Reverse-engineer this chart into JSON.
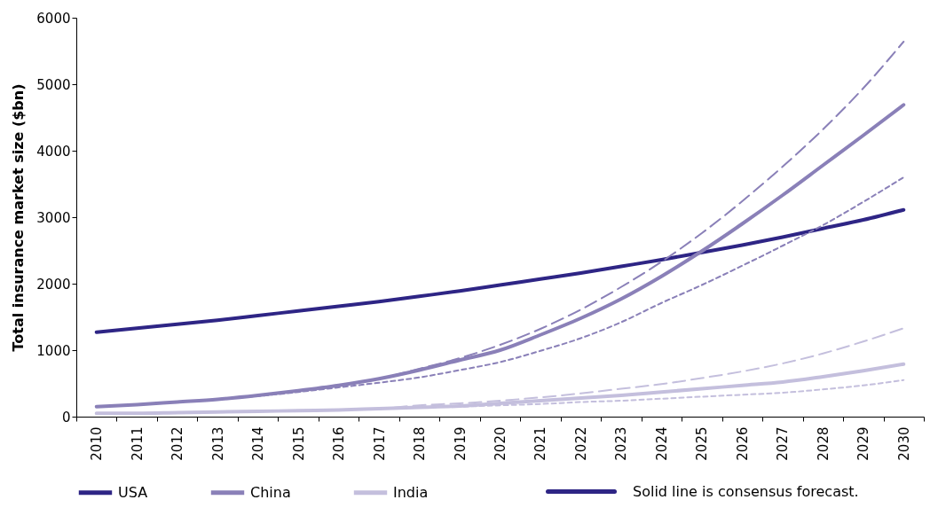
{
  "chart_data": {
    "type": "line",
    "ylabel": "Total insurance market size ($bn)",
    "categories": [
      "2010",
      "2011",
      "2012",
      "2013",
      "2014",
      "2015",
      "2016",
      "2017",
      "2018",
      "2019",
      "2020",
      "2021",
      "2022",
      "2023",
      "2024",
      "2025",
      "2026",
      "2027",
      "2028",
      "2029",
      "2030"
    ],
    "ylim": [
      0,
      6000
    ],
    "yticks": [
      0,
      1000,
      2000,
      3000,
      4000,
      5000,
      6000
    ],
    "grid": false,
    "legend": "bottom",
    "marker": "none",
    "annotations": [
      "Solid line is consensus forecast."
    ],
    "series": [
      {
        "name": "USA",
        "color": "#2e2585",
        "line_style": "solid",
        "values": [
          1270,
          1330,
          1390,
          1450,
          1520,
          1590,
          1660,
          1730,
          1810,
          1890,
          1980,
          2070,
          2160,
          2260,
          2360,
          2470,
          2580,
          2700,
          2830,
          2960,
          3110
        ]
      },
      {
        "name": "China",
        "color": "#8a80b8",
        "line_style": "solid",
        "values": [
          150,
          180,
          220,
          260,
          320,
          390,
          470,
          570,
          700,
          850,
          1000,
          1230,
          1480,
          1770,
          2110,
          2490,
          2900,
          3330,
          3780,
          4230,
          4690
        ]
      },
      {
        "color": "#8a80b8",
        "line_style": "dashed",
        "values": [
          150,
          180,
          220,
          260,
          320,
          390,
          470,
          570,
          720,
          880,
          1080,
          1320,
          1610,
          1950,
          2330,
          2760,
          3240,
          3760,
          4320,
          4940,
          5640
        ]
      },
      {
        "color": "#8a80b8",
        "line_style": "dotted",
        "values": [
          150,
          180,
          220,
          260,
          310,
          370,
          440,
          510,
          590,
          700,
          820,
          990,
          1180,
          1420,
          1710,
          1980,
          2270,
          2570,
          2880,
          3230,
          3600
        ]
      },
      {
        "name": "India",
        "color": "#c4bfdd",
        "line_style": "solid",
        "values": [
          50,
          50,
          60,
          70,
          80,
          90,
          100,
          120,
          140,
          160,
          200,
          240,
          280,
          320,
          370,
          420,
          470,
          520,
          600,
          690,
          790
        ]
      },
      {
        "color": "#c4bfdd",
        "line_style": "dashed",
        "values": [
          50,
          50,
          60,
          70,
          80,
          90,
          100,
          120,
          170,
          200,
          240,
          290,
          350,
          420,
          490,
          580,
          680,
          800,
          950,
          1130,
          1330
        ]
      },
      {
        "color": "#c4bfdd",
        "line_style": "dotted",
        "values": [
          50,
          50,
          60,
          70,
          80,
          90,
          100,
          120,
          140,
          150,
          170,
          190,
          220,
          240,
          270,
          300,
          330,
          360,
          410,
          470,
          550
        ]
      }
    ]
  }
}
